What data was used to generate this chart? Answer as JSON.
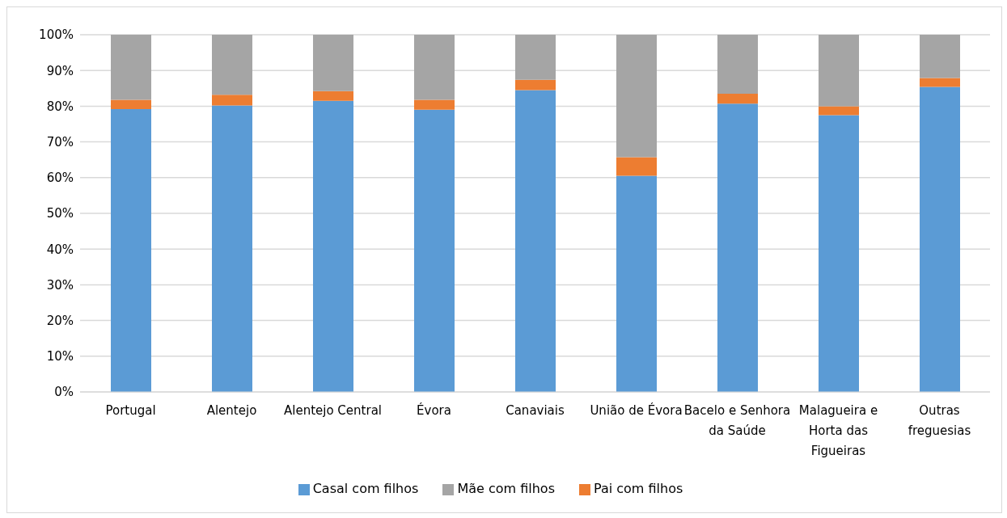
{
  "chart_data": {
    "type": "bar",
    "stacked": true,
    "categories": [
      "Portugal",
      "Alentejo",
      "Alentejo Central",
      "Évora",
      "Canaviais",
      "União de Évora",
      "Bacelo e Senhora da Saúde",
      "Malagueira e Horta das Figueiras",
      "Outras freguesias"
    ],
    "series": [
      {
        "name": "Casal com filhos",
        "color": "#5b9bd5",
        "values": [
          79.2,
          80.2,
          81.5,
          79.0,
          84.5,
          60.5,
          80.7,
          77.5,
          85.4
        ]
      },
      {
        "name": "Pai com filhos",
        "color": "#ed7d31",
        "values": [
          2.6,
          3.0,
          2.7,
          2.8,
          2.9,
          5.2,
          2.8,
          2.5,
          2.5
        ]
      },
      {
        "name": "Mãe com filhos",
        "color": "#a5a5a5",
        "values": [
          18.2,
          16.8,
          15.8,
          18.2,
          12.6,
          34.3,
          16.5,
          20.0,
          12.1
        ]
      }
    ],
    "ylim": [
      0,
      100
    ],
    "yticks": [
      {
        "value": 0,
        "label": "0%"
      },
      {
        "value": 10,
        "label": "10%"
      },
      {
        "value": 20,
        "label": "20%"
      },
      {
        "value": 30,
        "label": "30%"
      },
      {
        "value": 40,
        "label": "40%"
      },
      {
        "value": 50,
        "label": "50%"
      },
      {
        "value": 60,
        "label": "60%"
      },
      {
        "value": 70,
        "label": "70%"
      },
      {
        "value": 80,
        "label": "80%"
      },
      {
        "value": 90,
        "label": "90%"
      },
      {
        "value": 100,
        "label": "100%"
      }
    ],
    "grid": "y",
    "legend": "bottom"
  }
}
